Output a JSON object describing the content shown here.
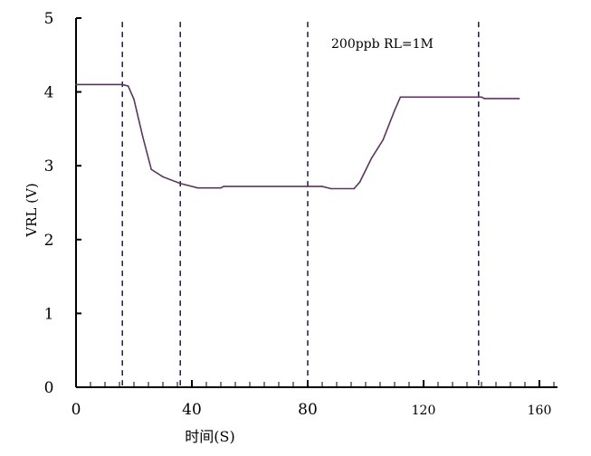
{
  "chart_data": {
    "type": "line",
    "title": "",
    "annotation": "200ppb RL=1M",
    "xlabel": "时间(S)",
    "ylabel": "VRL (V)",
    "xlim": [
      0,
      165
    ],
    "ylim": [
      0,
      5
    ],
    "x_ticks": [
      0,
      40,
      80,
      120,
      160
    ],
    "y_ticks": [
      0,
      1,
      2,
      3,
      4,
      5
    ],
    "grid": false,
    "vertical_dashed_lines_x": [
      16,
      36,
      80,
      139
    ],
    "line_color": "#5b3560",
    "series": [
      {
        "x": [
          0,
          16,
          18,
          20,
          23,
          26,
          30,
          36,
          42,
          50,
          51,
          85,
          88,
          96,
          98,
          102,
          106,
          110,
          112,
          140,
          141,
          153
        ],
        "y": [
          4.1,
          4.1,
          4.08,
          3.9,
          3.4,
          2.95,
          2.85,
          2.76,
          2.7,
          2.7,
          2.72,
          2.72,
          2.69,
          2.69,
          2.78,
          3.1,
          3.35,
          3.75,
          3.93,
          3.93,
          3.91,
          3.91
        ]
      }
    ]
  }
}
